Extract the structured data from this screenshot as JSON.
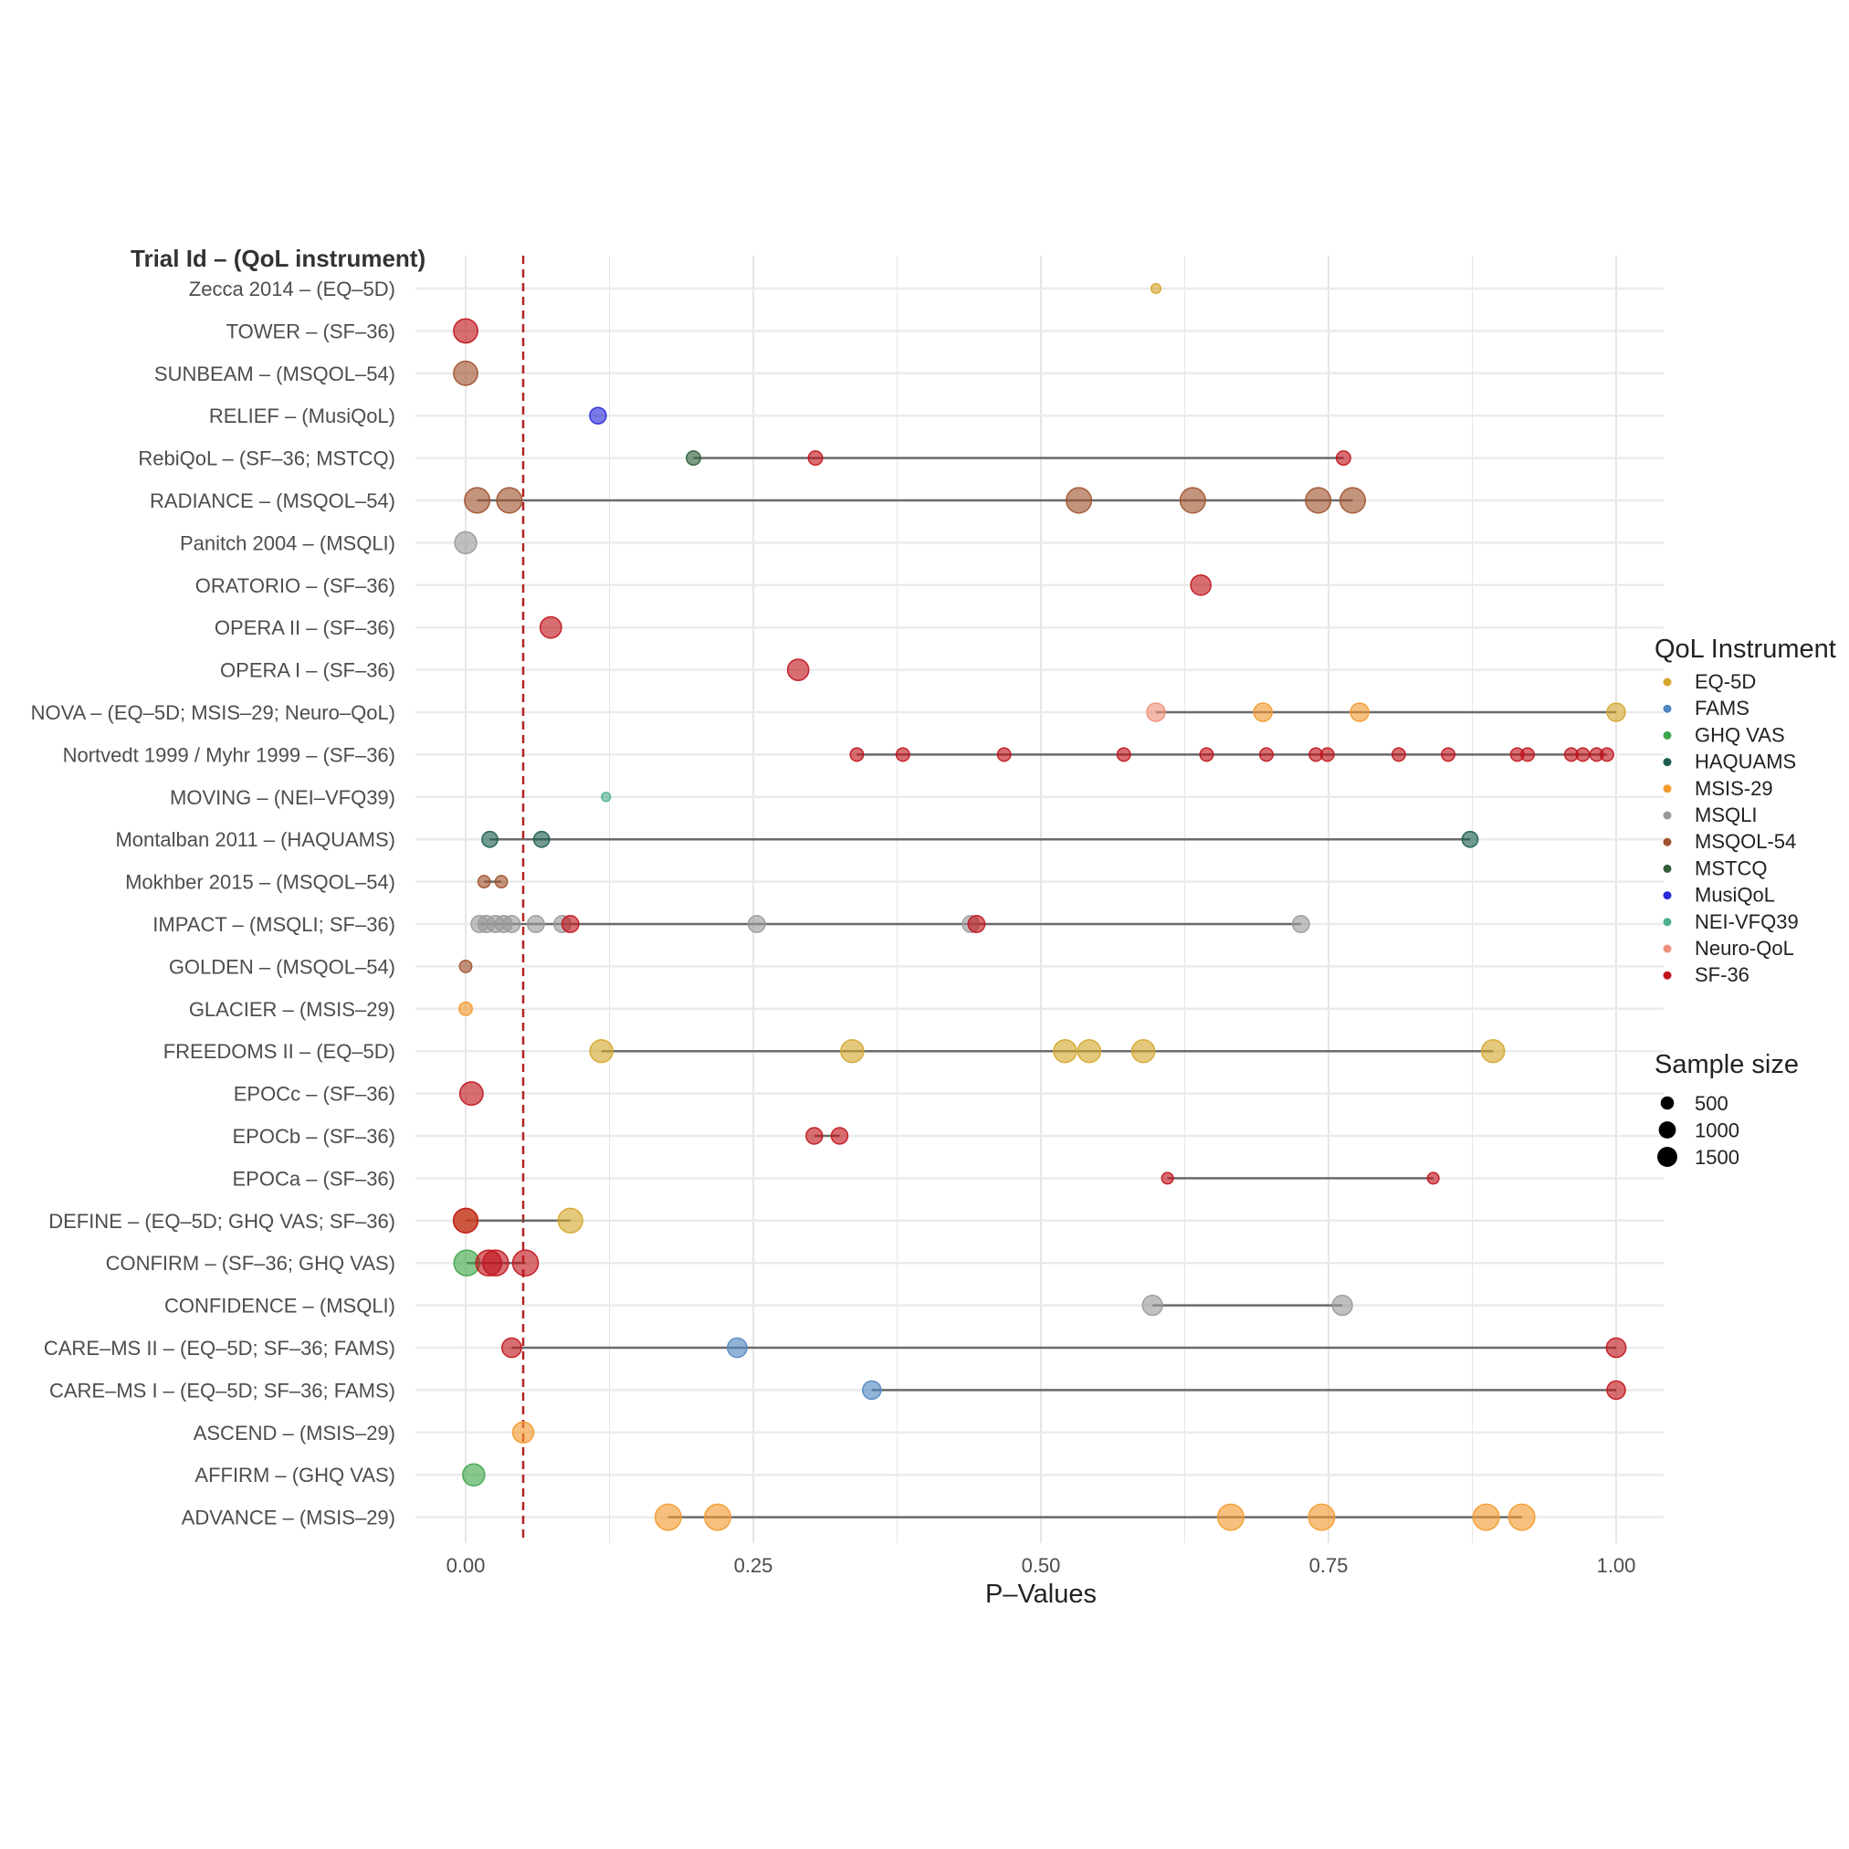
{
  "chart_data": {
    "type": "scatter",
    "subtype": "dot-range (lollipop) plot",
    "title": "",
    "ytitle": "Trial Id – (QoL instrument)",
    "xlabel": "P–Values",
    "xlim": [
      0,
      1
    ],
    "xticks": [
      0,
      0.25,
      0.5,
      0.75,
      1.0
    ],
    "xtick_labels": [
      "0.00",
      "0.25",
      "0.50",
      "0.75",
      "1.00"
    ],
    "grid": true,
    "reference_line": {
      "x": 0.05,
      "style": "dashed",
      "color": "#b22222"
    },
    "legend_position": "right",
    "instrument_legend": {
      "title": "QoL Instrument",
      "items": [
        {
          "name": "EQ-5D",
          "color": "#d4a72c"
        },
        {
          "name": "FAMS",
          "color": "#4f86c0"
        },
        {
          "name": "GHQ VAS",
          "color": "#3ea64a"
        },
        {
          "name": "HAQUAMS",
          "color": "#1b5e4f"
        },
        {
          "name": "MSIS-29",
          "color": "#f39a2e"
        },
        {
          "name": "MSQLI",
          "color": "#999999"
        },
        {
          "name": "MSQOL-54",
          "color": "#a0522d"
        },
        {
          "name": "MSTCQ",
          "color": "#2f5d3a"
        },
        {
          "name": "MusiQoL",
          "color": "#2a2ad8"
        },
        {
          "name": "NEI-VFQ39",
          "color": "#4fae8f"
        },
        {
          "name": "Neuro-QoL",
          "color": "#f0907a"
        },
        {
          "name": "SF-36",
          "color": "#c0141c"
        }
      ]
    },
    "size_legend": {
      "title": "Sample size",
      "items": [
        {
          "label": "500",
          "value": 500
        },
        {
          "label": "1000",
          "value": 1000
        },
        {
          "label": "1500",
          "value": 1500
        }
      ]
    },
    "rows": [
      {
        "label": "Zecca 2014 – (EQ–5D)",
        "points": [
          {
            "p": 0.6,
            "instrument": "EQ-5D",
            "n": 60
          }
        ]
      },
      {
        "label": "TOWER – (SF–36)",
        "points": [
          {
            "p": 0.0,
            "instrument": "SF-36",
            "n": 1150
          }
        ]
      },
      {
        "label": "SUNBEAM – (MSQOL–54)",
        "points": [
          {
            "p": 0.0,
            "instrument": "MSQOL-54",
            "n": 1150
          }
        ]
      },
      {
        "label": "RELIEF – (MusiQoL)",
        "points": [
          {
            "p": 0.115,
            "instrument": "MusiQoL",
            "n": 400
          }
        ]
      },
      {
        "label": "RebiQoL – (SF–36; MSTCQ)",
        "points": [
          {
            "p": 0.198,
            "instrument": "MSTCQ",
            "n": 250
          },
          {
            "p": 0.304,
            "instrument": "SF-36",
            "n": 250
          },
          {
            "p": 0.763,
            "instrument": "SF-36",
            "n": 250
          }
        ]
      },
      {
        "label": "RADIANCE – (MSQOL–54)",
        "points": [
          {
            "p": 0.01,
            "instrument": "MSQOL-54",
            "n": 1300
          },
          {
            "p": 0.038,
            "instrument": "MSQOL-54",
            "n": 1300
          },
          {
            "p": 0.533,
            "instrument": "MSQOL-54",
            "n": 1300
          },
          {
            "p": 0.632,
            "instrument": "MSQOL-54",
            "n": 1300
          },
          {
            "p": 0.741,
            "instrument": "MSQOL-54",
            "n": 1300
          },
          {
            "p": 0.771,
            "instrument": "MSQOL-54",
            "n": 1300
          }
        ]
      },
      {
        "label": "Panitch 2004 – (MSQLI)",
        "points": [
          {
            "p": 0.0,
            "instrument": "MSQLI",
            "n": 900
          }
        ]
      },
      {
        "label": "ORATORIO – (SF–36)",
        "points": [
          {
            "p": 0.639,
            "instrument": "SF-36",
            "n": 730
          }
        ]
      },
      {
        "label": "OPERA II – (SF–36)",
        "points": [
          {
            "p": 0.074,
            "instrument": "SF-36",
            "n": 830
          }
        ]
      },
      {
        "label": "OPERA I – (SF–36)",
        "points": [
          {
            "p": 0.289,
            "instrument": "SF-36",
            "n": 820
          }
        ]
      },
      {
        "label": "NOVA – (EQ–5D; MSIS–29; Neuro–QoL)",
        "points": [
          {
            "p": 0.6,
            "instrument": "Neuro-QoL",
            "n": 550
          },
          {
            "p": 0.693,
            "instrument": "MSIS-29",
            "n": 550
          },
          {
            "p": 0.777,
            "instrument": "MSIS-29",
            "n": 550
          },
          {
            "p": 1.0,
            "instrument": "EQ-5D",
            "n": 550
          }
        ]
      },
      {
        "label": "Nortvedt 1999 / Myhr 1999 – (SF–36)",
        "points": [
          {
            "p": 0.34,
            "instrument": "SF-36",
            "n": 200
          },
          {
            "p": 0.38,
            "instrument": "SF-36",
            "n": 200
          },
          {
            "p": 0.468,
            "instrument": "SF-36",
            "n": 200
          },
          {
            "p": 0.572,
            "instrument": "SF-36",
            "n": 200
          },
          {
            "p": 0.644,
            "instrument": "SF-36",
            "n": 200
          },
          {
            "p": 0.696,
            "instrument": "SF-36",
            "n": 200
          },
          {
            "p": 0.739,
            "instrument": "SF-36",
            "n": 200
          },
          {
            "p": 0.749,
            "instrument": "SF-36",
            "n": 200
          },
          {
            "p": 0.811,
            "instrument": "SF-36",
            "n": 200
          },
          {
            "p": 0.854,
            "instrument": "SF-36",
            "n": 200
          },
          {
            "p": 0.914,
            "instrument": "SF-36",
            "n": 200
          },
          {
            "p": 0.923,
            "instrument": "SF-36",
            "n": 200
          },
          {
            "p": 0.961,
            "instrument": "SF-36",
            "n": 200
          },
          {
            "p": 0.971,
            "instrument": "SF-36",
            "n": 200
          },
          {
            "p": 0.983,
            "instrument": "SF-36",
            "n": 200
          },
          {
            "p": 0.992,
            "instrument": "SF-36",
            "n": 200
          }
        ]
      },
      {
        "label": "MOVING – (NEI–VFQ39)",
        "points": [
          {
            "p": 0.122,
            "instrument": "NEI-VFQ39",
            "n": 40
          }
        ]
      },
      {
        "label": "Montalban 2011 – (HAQUAMS)",
        "points": [
          {
            "p": 0.021,
            "instrument": "HAQUAMS",
            "n": 350
          },
          {
            "p": 0.066,
            "instrument": "HAQUAMS",
            "n": 350
          },
          {
            "p": 0.873,
            "instrument": "HAQUAMS",
            "n": 350
          }
        ]
      },
      {
        "label": "Mokhber 2015 – (MSQOL–54)",
        "points": [
          {
            "p": 0.016,
            "instrument": "MSQOL-54",
            "n": 150
          },
          {
            "p": 0.031,
            "instrument": "MSQOL-54",
            "n": 150
          }
        ]
      },
      {
        "label": "IMPACT – (MSQLI; SF–36)",
        "points": [
          {
            "p": 0.012,
            "instrument": "MSQLI",
            "n": 430
          },
          {
            "p": 0.018,
            "instrument": "MSQLI",
            "n": 430
          },
          {
            "p": 0.026,
            "instrument": "MSQLI",
            "n": 430
          },
          {
            "p": 0.033,
            "instrument": "MSQLI",
            "n": 430
          },
          {
            "p": 0.04,
            "instrument": "MSQLI",
            "n": 430
          },
          {
            "p": 0.061,
            "instrument": "MSQLI",
            "n": 430
          },
          {
            "p": 0.084,
            "instrument": "MSQLI",
            "n": 430
          },
          {
            "p": 0.253,
            "instrument": "MSQLI",
            "n": 430
          },
          {
            "p": 0.439,
            "instrument": "MSQLI",
            "n": 430
          },
          {
            "p": 0.726,
            "instrument": "MSQLI",
            "n": 430
          },
          {
            "p": 0.091,
            "instrument": "SF-36",
            "n": 430
          },
          {
            "p": 0.444,
            "instrument": "SF-36",
            "n": 430
          }
        ]
      },
      {
        "label": "GOLDEN – (MSQOL–54)",
        "points": [
          {
            "p": 0.0,
            "instrument": "MSQOL-54",
            "n": 150
          }
        ]
      },
      {
        "label": "GLACIER – (MSIS–29)",
        "points": [
          {
            "p": 0.0,
            "instrument": "MSIS-29",
            "n": 200
          }
        ]
      },
      {
        "label": "FREEDOMS II – (EQ–5D)",
        "points": [
          {
            "p": 0.118,
            "instrument": "EQ-5D",
            "n": 1000
          },
          {
            "p": 0.336,
            "instrument": "EQ-5D",
            "n": 1000
          },
          {
            "p": 0.521,
            "instrument": "EQ-5D",
            "n": 1000
          },
          {
            "p": 0.542,
            "instrument": "EQ-5D",
            "n": 1000
          },
          {
            "p": 0.589,
            "instrument": "EQ-5D",
            "n": 1000
          },
          {
            "p": 0.893,
            "instrument": "EQ-5D",
            "n": 1000
          }
        ]
      },
      {
        "label": "EPOCc – (SF–36)",
        "points": [
          {
            "p": 0.005,
            "instrument": "SF-36",
            "n": 1050
          }
        ]
      },
      {
        "label": "EPOCb – (SF–36)",
        "points": [
          {
            "p": 0.303,
            "instrument": "SF-36",
            "n": 400
          },
          {
            "p": 0.325,
            "instrument": "SF-36",
            "n": 400
          }
        ]
      },
      {
        "label": "EPOCa – (SF–36)",
        "points": [
          {
            "p": 0.61,
            "instrument": "SF-36",
            "n": 120
          },
          {
            "p": 0.841,
            "instrument": "SF-36",
            "n": 120
          }
        ]
      },
      {
        "label": "DEFINE – (EQ–5D; GHQ VAS; SF–36)",
        "points": [
          {
            "p": 0.0,
            "instrument": "EQ-5D",
            "n": 1200
          },
          {
            "p": 0.091,
            "instrument": "EQ-5D",
            "n": 1200
          },
          {
            "p": 0.0,
            "instrument": "SF-36",
            "n": 1200
          }
        ]
      },
      {
        "label": "CONFIRM – (SF–36; GHQ VAS)",
        "points": [
          {
            "p": 0.001,
            "instrument": "GHQ VAS",
            "n": 1350
          },
          {
            "p": 0.02,
            "instrument": "SF-36",
            "n": 1350
          },
          {
            "p": 0.026,
            "instrument": "SF-36",
            "n": 1350
          },
          {
            "p": 0.052,
            "instrument": "SF-36",
            "n": 1350
          }
        ]
      },
      {
        "label": "CONFIDENCE – (MSQLI)",
        "points": [
          {
            "p": 0.597,
            "instrument": "MSQLI",
            "n": 700
          },
          {
            "p": 0.762,
            "instrument": "MSQLI",
            "n": 700
          }
        ]
      },
      {
        "label": "CARE–MS II – (EQ–5D; SF–36; FAMS)",
        "points": [
          {
            "p": 0.04,
            "instrument": "SF-36",
            "n": 650
          },
          {
            "p": 0.236,
            "instrument": "FAMS",
            "n": 650
          },
          {
            "p": 1.0,
            "instrument": "SF-36",
            "n": 650
          }
        ]
      },
      {
        "label": "CARE–MS I – (EQ–5D; SF–36; FAMS)",
        "points": [
          {
            "p": 0.353,
            "instrument": "FAMS",
            "n": 550
          },
          {
            "p": 1.0,
            "instrument": "SF-36",
            "n": 550
          }
        ]
      },
      {
        "label": "ASCEND – (MSIS–29)",
        "points": [
          {
            "p": 0.05,
            "instrument": "MSIS-29",
            "n": 800
          }
        ]
      },
      {
        "label": "AFFIRM – (GHQ VAS)",
        "points": [
          {
            "p": 0.007,
            "instrument": "GHQ VAS",
            "n": 900
          }
        ]
      },
      {
        "label": "ADVANCE – (MSIS–29)",
        "points": [
          {
            "p": 0.176,
            "instrument": "MSIS-29",
            "n": 1400
          },
          {
            "p": 0.219,
            "instrument": "MSIS-29",
            "n": 1400
          },
          {
            "p": 0.665,
            "instrument": "MSIS-29",
            "n": 1400
          },
          {
            "p": 0.744,
            "instrument": "MSIS-29",
            "n": 1400
          },
          {
            "p": 0.887,
            "instrument": "MSIS-29",
            "n": 1400
          },
          {
            "p": 0.918,
            "instrument": "MSIS-29",
            "n": 1400
          }
        ]
      }
    ]
  }
}
